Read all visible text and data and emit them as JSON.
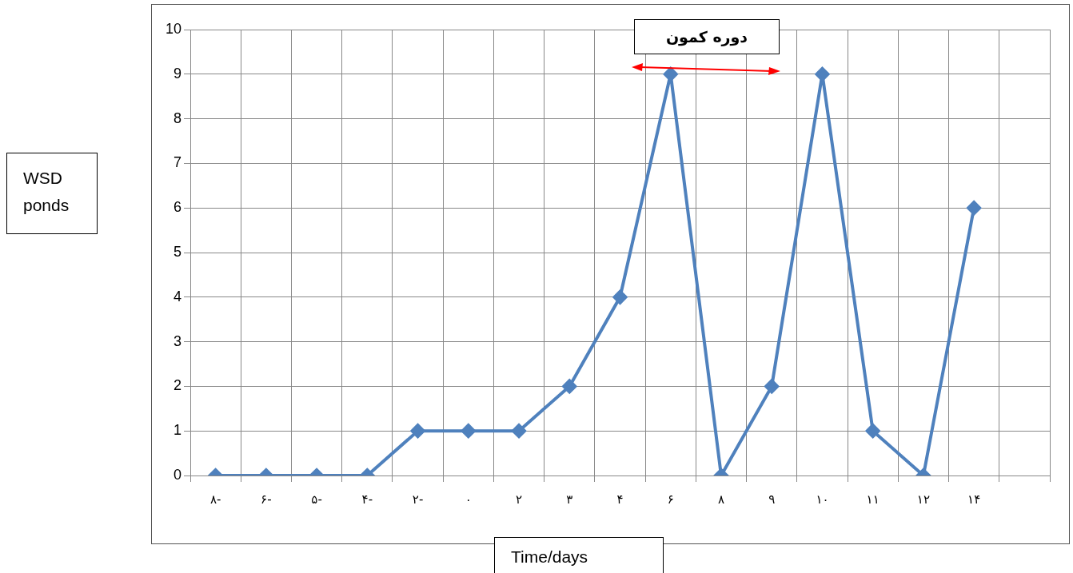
{
  "chart_data": {
    "type": "line",
    "xlabel": "Time/days",
    "categories": [
      "۸-",
      "۶-",
      "۵-",
      "۴-",
      "۲-",
      "۰",
      "۲",
      "۳",
      "۴",
      "۶",
      "۸",
      "۹",
      "۱۰",
      "۱۱",
      "۱۲",
      "۱۴",
      null
    ],
    "series": [
      {
        "color": "#4f81bd",
        "values": [
          0,
          0,
          0,
          0,
          1,
          1,
          1,
          2,
          4,
          9,
          0,
          2,
          9,
          1,
          0,
          6,
          null
        ]
      }
    ],
    "ylim": [
      0,
      10
    ],
    "yticks": [
      0,
      1,
      2,
      3,
      4,
      5,
      6,
      7,
      8,
      9,
      10
    ],
    "grid": true,
    "marker": "diamond",
    "line_style": "solid",
    "annotations": [
      "دوره کمون",
      "WSD\nponds"
    ]
  }
}
